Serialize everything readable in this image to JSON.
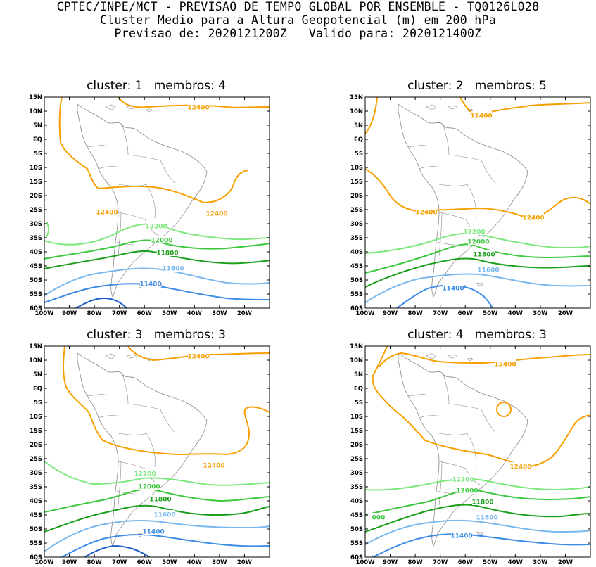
{
  "title": {
    "line1": "CPTEC/INPE/MCT - PREVISAO DE TEMPO GLOBAL POR ENSEMBLE - TQ0126L028",
    "line2": "Cluster Medio para a Altura Geopotencial (m) em 200 hPa",
    "line3": "Previsao de: 2020121200Z   Valido para: 2020121400Z"
  },
  "axes": {
    "lat_labels": [
      "15N",
      "10N",
      "5N",
      "EQ",
      "5S",
      "10S",
      "15S",
      "20S",
      "25S",
      "30S",
      "35S",
      "40S",
      "45S",
      "50S",
      "55S",
      "60S"
    ],
    "lon_labels": [
      "100W",
      "90W",
      "80W",
      "70W",
      "60W",
      "50W",
      "40W",
      "30W",
      "20W"
    ]
  },
  "colors": {
    "c12400": "#f5a000",
    "c12200": "#7de87d",
    "c12000": "#3cc83c",
    "c11800": "#1aa01a",
    "c11600": "#7ab8ee",
    "c11400": "#3c8ce6",
    "c11200": "#1f5fc8",
    "coast": "#8a8a8a"
  },
  "panels": [
    {
      "title": "cluster: 1   membros: 4",
      "labels": [
        {
          "text": "12400",
          "color": "c12400"
        },
        {
          "text": "12400",
          "color": "c12400"
        },
        {
          "text": "12400",
          "color": "c12400"
        },
        {
          "text": "12200",
          "color": "c12200"
        },
        {
          "text": "12000",
          "color": "c12000"
        },
        {
          "text": "11800",
          "color": "c11800"
        },
        {
          "text": "11600",
          "color": "c11600"
        },
        {
          "text": "11400",
          "color": "c11400"
        }
      ]
    },
    {
      "title": "cluster: 2   membros: 5",
      "labels": [
        {
          "text": "12400",
          "color": "c12400"
        },
        {
          "text": "12400",
          "color": "c12400"
        },
        {
          "text": "12400",
          "color": "c12400"
        },
        {
          "text": "12200",
          "color": "c12200"
        },
        {
          "text": "12000",
          "color": "c12000"
        },
        {
          "text": "11800",
          "color": "c11800"
        },
        {
          "text": "11600",
          "color": "c11600"
        },
        {
          "text": "11400",
          "color": "c11400"
        }
      ]
    },
    {
      "title": "cluster: 3   membros: 3",
      "labels": [
        {
          "text": "12400",
          "color": "c12400"
        },
        {
          "text": "12400",
          "color": "c12400"
        },
        {
          "text": "12200",
          "color": "c12200"
        },
        {
          "text": "12000",
          "color": "c12000"
        },
        {
          "text": "11800",
          "color": "c11800"
        },
        {
          "text": "11600",
          "color": "c11600"
        },
        {
          "text": "11400",
          "color": "c11400"
        }
      ]
    },
    {
      "title": "cluster: 4   membros: 3",
      "labels": [
        {
          "text": "12400",
          "color": "c12400"
        },
        {
          "text": "12400",
          "color": "c12400"
        },
        {
          "text": "12200",
          "color": "c12200"
        },
        {
          "text": "12000",
          "color": "c12000"
        },
        {
          "text": "000",
          "color": "c12000"
        },
        {
          "text": "11800",
          "color": "c11800"
        },
        {
          "text": "11600",
          "color": "c11600"
        },
        {
          "text": "11400",
          "color": "c11400"
        }
      ]
    }
  ]
}
